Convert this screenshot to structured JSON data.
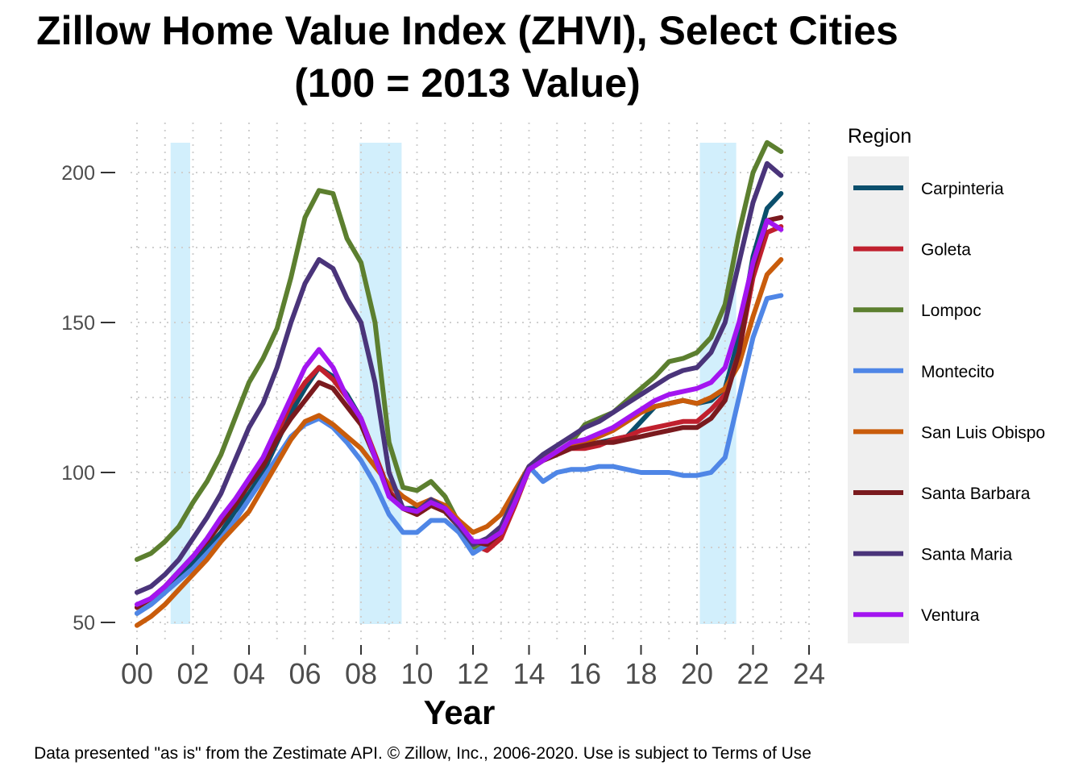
{
  "chart_data": {
    "type": "line",
    "title": "Zillow Home Value Index (ZHVI), Select Cities",
    "subtitle": "(100 = 2013 Value)",
    "xlabel": "Year",
    "ylabel": "",
    "xlim": [
      2000,
      2024
    ],
    "ylim": [
      48,
      210
    ],
    "grid": true,
    "legend_title": "Region",
    "legend_position": "right",
    "caption": "Data presented \"as is\" from the Zestimate API. © Zillow, Inc., 2006-2020. Use is subject to Terms of Use",
    "x_ticks": [
      2000,
      2002,
      2004,
      2006,
      2008,
      2010,
      2012,
      2014,
      2016,
      2018,
      2020,
      2022,
      2024
    ],
    "x_tick_labels": [
      "00",
      "02",
      "04",
      "06",
      "08",
      "10",
      "12",
      "14",
      "16",
      "18",
      "20",
      "22",
      "24"
    ],
    "y_ticks": [
      50,
      100,
      150,
      200
    ],
    "y_tick_labels": [
      "50",
      "100",
      "150",
      "200"
    ],
    "recessions": [
      {
        "start": 2001.2,
        "end": 2001.9
      },
      {
        "start": 2007.95,
        "end": 2009.45
      },
      {
        "start": 2020.1,
        "end": 2021.4
      }
    ],
    "recession_color": "#d2effc",
    "x": [
      2000,
      2000.5,
      2001,
      2001.5,
      2002,
      2002.5,
      2003,
      2003.5,
      2004,
      2004.5,
      2005,
      2005.5,
      2006,
      2006.5,
      2007,
      2007.5,
      2008,
      2008.5,
      2009,
      2009.5,
      2010,
      2010.5,
      2011,
      2011.5,
      2012,
      2012.5,
      2013,
      2013.5,
      2014,
      2014.5,
      2015,
      2015.5,
      2016,
      2016.5,
      2017,
      2017.5,
      2018,
      2018.5,
      2019,
      2019.5,
      2020,
      2020.5,
      2021,
      2021.5,
      2022,
      2022.5,
      2023
    ],
    "series": [
      {
        "name": "Carpinteria",
        "color": "#0b4f6c",
        "values": [
          53,
          56,
          60,
          65,
          70,
          75,
          80,
          87,
          93,
          100,
          110,
          120,
          128,
          135,
          132,
          126,
          118,
          105,
          93,
          88,
          88,
          90,
          87,
          82,
          76,
          76,
          80,
          90,
          101,
          105,
          107,
          109,
          109,
          110,
          111,
          112,
          117,
          122,
          123,
          124,
          123,
          124,
          128,
          145,
          172,
          188,
          193
        ]
      },
      {
        "name": "Goleta",
        "color": "#c0202e",
        "values": [
          55,
          58,
          62,
          67,
          72,
          77,
          83,
          90,
          97,
          103,
          113,
          123,
          130,
          135,
          131,
          125,
          118,
          106,
          94,
          88,
          86,
          89,
          87,
          82,
          76,
          74,
          78,
          89,
          101,
          104,
          106,
          108,
          108,
          109,
          111,
          112,
          114,
          115,
          116,
          117,
          117,
          121,
          126,
          140,
          165,
          180,
          182
        ]
      },
      {
        "name": "Lompoc",
        "color": "#5c7f2f",
        "values": [
          71,
          73,
          77,
          82,
          90,
          97,
          106,
          118,
          130,
          138,
          148,
          165,
          185,
          194,
          193,
          178,
          170,
          150,
          110,
          95,
          94,
          97,
          92,
          83,
          75,
          76,
          80,
          91,
          101,
          104,
          106,
          110,
          116,
          118,
          120,
          124,
          128,
          132,
          137,
          138,
          140,
          145,
          156,
          180,
          200,
          210,
          207
        ]
      },
      {
        "name": "Montecito",
        "color": "#4f86e6",
        "values": [
          53,
          56,
          60,
          64,
          68,
          73,
          78,
          84,
          91,
          98,
          105,
          112,
          116,
          118,
          115,
          110,
          104,
          96,
          86,
          80,
          80,
          84,
          84,
          80,
          73,
          76,
          82,
          92,
          102,
          97,
          100,
          101,
          101,
          102,
          102,
          101,
          100,
          100,
          100,
          99,
          99,
          100,
          105,
          125,
          145,
          158,
          159
        ]
      },
      {
        "name": "San Luis Obispo",
        "color": "#c95c0b",
        "values": [
          49,
          52,
          56,
          61,
          66,
          71,
          77,
          82,
          87,
          95,
          103,
          111,
          117,
          119,
          116,
          112,
          108,
          102,
          96,
          92,
          89,
          91,
          89,
          84,
          80,
          82,
          86,
          94,
          102,
          105,
          107,
          109,
          110,
          112,
          114,
          117,
          120,
          122,
          123,
          124,
          123,
          125,
          128,
          136,
          152,
          166,
          171
        ]
      },
      {
        "name": "Santa Barbara",
        "color": "#7a1a1e",
        "values": [
          55,
          58,
          62,
          67,
          72,
          77,
          83,
          89,
          96,
          102,
          111,
          118,
          124,
          130,
          128,
          122,
          116,
          105,
          93,
          88,
          86,
          89,
          87,
          82,
          77,
          76,
          80,
          90,
          101,
          104,
          106,
          108,
          109,
          110,
          110,
          111,
          112,
          113,
          114,
          115,
          115,
          118,
          124,
          140,
          168,
          184,
          185
        ]
      },
      {
        "name": "Santa Maria",
        "color": "#4a347a",
        "values": [
          60,
          62,
          66,
          71,
          78,
          85,
          93,
          104,
          115,
          123,
          135,
          150,
          163,
          171,
          168,
          158,
          150,
          130,
          100,
          88,
          87,
          91,
          88,
          82,
          76,
          78,
          82,
          92,
          102,
          106,
          109,
          112,
          115,
          117,
          120,
          123,
          126,
          129,
          132,
          134,
          135,
          140,
          150,
          170,
          190,
          203,
          199
        ]
      },
      {
        "name": "Ventura",
        "color": "#a315f0",
        "values": [
          56,
          58,
          62,
          67,
          72,
          78,
          85,
          91,
          98,
          105,
          115,
          125,
          135,
          141,
          135,
          125,
          118,
          105,
          92,
          88,
          87,
          90,
          88,
          83,
          77,
          77,
          80,
          90,
          101,
          104,
          107,
          110,
          111,
          113,
          115,
          118,
          121,
          124,
          126,
          127,
          128,
          130,
          135,
          150,
          170,
          184,
          181
        ]
      }
    ]
  }
}
